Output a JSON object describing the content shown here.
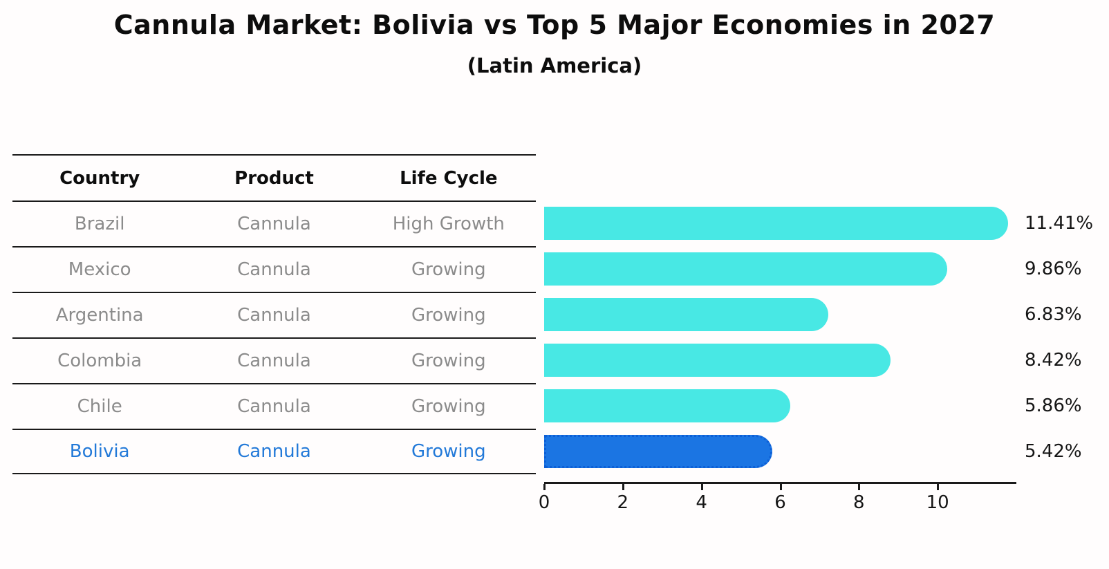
{
  "title": "Cannula Market: Bolivia vs Top 5 Major Economies in 2027",
  "subtitle": "(Latin America)",
  "table": {
    "headers": [
      "Country",
      "Product",
      "Life Cycle"
    ],
    "rows": [
      {
        "country": "Brazil",
        "product": "Cannula",
        "life_cycle": "High Growth",
        "highlight": false
      },
      {
        "country": "Mexico",
        "product": "Cannula",
        "life_cycle": "Growing",
        "highlight": false
      },
      {
        "country": "Argentina",
        "product": "Cannula",
        "life_cycle": "Growing",
        "highlight": false
      },
      {
        "country": "Colombia",
        "product": "Cannula",
        "life_cycle": "Growing",
        "highlight": false
      },
      {
        "country": "Chile",
        "product": "Cannula",
        "life_cycle": "Growing",
        "highlight": false
      },
      {
        "country": "Bolivia",
        "product": "Cannula",
        "life_cycle": "Growing",
        "highlight": true
      }
    ]
  },
  "chart_data": {
    "type": "bar",
    "orientation": "horizontal",
    "title": "Cannula Market: Bolivia vs Top 5 Major Economies in 2027 (Latin America)",
    "categories": [
      "Brazil",
      "Mexico",
      "Argentina",
      "Colombia",
      "Chile",
      "Bolivia"
    ],
    "values": [
      11.41,
      9.86,
      6.83,
      8.42,
      5.86,
      5.42
    ],
    "labels": [
      "11.41%",
      "9.86%",
      "6.83%",
      "8.42%",
      "5.86%",
      "5.42%"
    ],
    "xlabel": "",
    "ylabel": "",
    "xlim": [
      0,
      12
    ],
    "x_ticks": [
      0,
      2,
      4,
      6,
      8,
      10
    ],
    "grid": false,
    "legend": false,
    "bar_color": "#48e8e4",
    "highlight_color": "#1b75e3",
    "highlight_border_color": "#0d5fd6",
    "highlight_index": 5
  }
}
